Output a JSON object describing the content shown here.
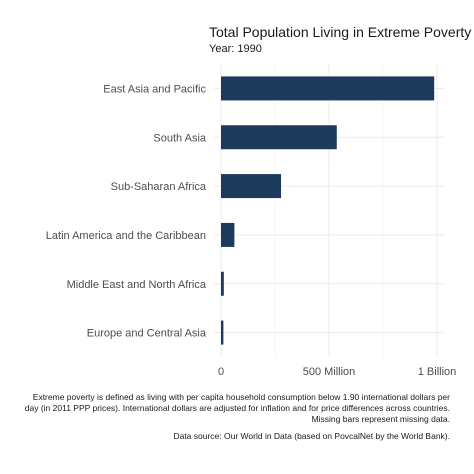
{
  "chart_data": {
    "type": "bar",
    "orientation": "horizontal",
    "title": "Total Population Living in Extreme Poverty",
    "subtitle": "Year: 1990",
    "categories": [
      "East Asia and Pacific",
      "South Asia",
      "Sub-Saharan Africa",
      "Latin America and the Caribbean",
      "Middle East and North Africa",
      "Europe and Central Asia"
    ],
    "values": [
      987000000,
      536000000,
      278000000,
      62000000,
      13000000,
      11000000
    ],
    "xlim": [
      0,
      1000000000
    ],
    "xticks": [
      {
        "value": 0,
        "label": "0"
      },
      {
        "value": 500000000,
        "label": "500 Million"
      },
      {
        "value": 1000000000,
        "label": "1 Billion"
      }
    ],
    "xlabel": "",
    "ylabel": "",
    "bar_color": "#1b3a5c",
    "grid": true
  },
  "footnote": {
    "lines": [
      "Extreme poverty is defined as living with per capita household consumption below 1.90 international dollars per",
      "day (in 2011 PPP prices). International dollars are adjusted for inflation and for price differences across countries.",
      "Missing bars represent missing data."
    ],
    "source": "Data source: Our World in Data (based on PovcalNet by the World Bank)."
  }
}
